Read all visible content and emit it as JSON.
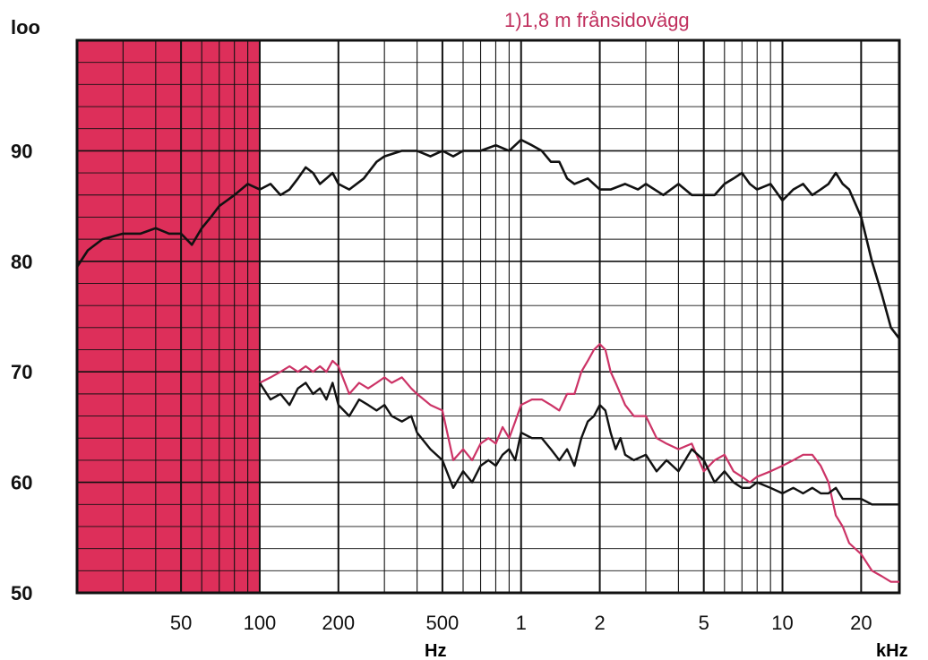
{
  "colors": {
    "shade": "#dd2f5a",
    "grid": "#111111",
    "curve_on_axis": "#111111",
    "curve_off_axis": "#cc3366",
    "note": "#c0305e"
  },
  "chart_data": {
    "type": "line",
    "title": "",
    "note": "1)1,8 m  frånsidovägg",
    "xlabel": "",
    "ylabel": "",
    "xscale": "log",
    "x_unit_hz": "Hz",
    "x_unit_khz": "kHz",
    "xlim": [
      20,
      28000
    ],
    "ylim": [
      50,
      100
    ],
    "grid": true,
    "x_ticks": [
      {
        "value": 50,
        "label": "50"
      },
      {
        "value": 100,
        "label": "100"
      },
      {
        "value": 200,
        "label": "200"
      },
      {
        "value": 500,
        "label": "500"
      },
      {
        "value": 1000,
        "label": "1"
      },
      {
        "value": 2000,
        "label": "2"
      },
      {
        "value": 5000,
        "label": "5"
      },
      {
        "value": 10000,
        "label": "10"
      },
      {
        "value": 20000,
        "label": "20"
      }
    ],
    "y_ticks": [
      {
        "value": 50,
        "label": "50"
      },
      {
        "value": 60,
        "label": "60"
      },
      {
        "value": 70,
        "label": "70"
      },
      {
        "value": 80,
        "label": "80"
      },
      {
        "value": 90,
        "label": "90"
      },
      {
        "value": 100,
        "label": "loo"
      }
    ],
    "shaded_region": {
      "x": [
        20,
        100
      ]
    },
    "series": [
      {
        "key": "on_axis",
        "x": [
          20,
          22,
          25,
          30,
          35,
          40,
          45,
          50,
          55,
          60,
          65,
          70,
          80,
          90,
          100,
          110,
          120,
          130,
          140,
          150,
          160,
          170,
          180,
          190,
          200,
          220,
          250,
          280,
          300,
          350,
          400,
          450,
          500,
          550,
          600,
          700,
          800,
          900,
          1000,
          1100,
          1200,
          1300,
          1400,
          1500,
          1600,
          1800,
          2000,
          2200,
          2500,
          2800,
          3000,
          3500,
          4000,
          4500,
          5000,
          5500,
          6000,
          6500,
          7000,
          7500,
          8000,
          9000,
          10000,
          11000,
          12000,
          13000,
          14000,
          15000,
          16000,
          17000,
          18000,
          20000,
          22000,
          24000,
          26000,
          28000
        ],
        "y": [
          79.5,
          81,
          82,
          82.5,
          82.5,
          83,
          82.5,
          82.5,
          81.5,
          83,
          84,
          85,
          86,
          87,
          86.5,
          87,
          86,
          86.5,
          87.5,
          88.5,
          88,
          87,
          87.5,
          88,
          87,
          86.5,
          87.5,
          89,
          89.5,
          90,
          90,
          89.5,
          90,
          89.5,
          90,
          90,
          90.5,
          90,
          91,
          90.5,
          90,
          89,
          89,
          87.5,
          87,
          87.5,
          86.5,
          86.5,
          87,
          86.5,
          87,
          86,
          87,
          86,
          86,
          86,
          87,
          87.5,
          88,
          87,
          86.5,
          87,
          85.5,
          86.5,
          87,
          86,
          86.5,
          87,
          88,
          87,
          86.5,
          84,
          80,
          77,
          74,
          73
        ]
      },
      {
        "key": "off_axis_red",
        "x": [
          100,
          110,
          120,
          130,
          140,
          150,
          160,
          170,
          180,
          190,
          200,
          220,
          240,
          260,
          280,
          300,
          320,
          350,
          380,
          400,
          450,
          500,
          550,
          600,
          650,
          700,
          750,
          800,
          850,
          900,
          950,
          1000,
          1100,
          1200,
          1300,
          1400,
          1500,
          1600,
          1700,
          1800,
          1900,
          2000,
          2100,
          2200,
          2300,
          2400,
          2500,
          2700,
          3000,
          3300,
          3600,
          4000,
          4500,
          5000,
          5500,
          6000,
          6500,
          7000,
          7500,
          8000,
          9000,
          10000,
          11000,
          12000,
          13000,
          14000,
          15000,
          16000,
          17000,
          18000,
          20000,
          22000,
          24000,
          26000,
          28000
        ],
        "y": [
          69,
          69.5,
          70,
          70.5,
          70,
          70.5,
          70,
          70.5,
          70,
          71,
          70.5,
          68,
          69,
          68.5,
          69,
          69.5,
          69,
          69.5,
          68.5,
          68,
          67,
          66.5,
          62,
          63,
          62,
          63.5,
          64,
          63.5,
          65,
          64,
          65.5,
          67,
          67.5,
          67.5,
          67,
          66.5,
          68,
          68,
          70,
          71,
          72,
          72.5,
          72,
          70,
          69,
          68,
          67,
          66,
          66,
          64,
          63.5,
          63,
          63.5,
          61,
          62,
          62.5,
          61,
          60.5,
          60,
          60.5,
          61,
          61.5,
          62,
          62.5,
          62.5,
          61.5,
          60,
          57,
          56,
          54.5,
          53.5,
          52,
          51.5,
          51,
          51
        ]
      },
      {
        "key": "off_axis_black",
        "x": [
          100,
          110,
          120,
          130,
          140,
          150,
          160,
          170,
          180,
          190,
          200,
          220,
          240,
          260,
          280,
          300,
          320,
          350,
          380,
          400,
          450,
          500,
          550,
          600,
          650,
          700,
          750,
          800,
          850,
          900,
          950,
          1000,
          1100,
          1200,
          1300,
          1400,
          1500,
          1600,
          1700,
          1800,
          1900,
          2000,
          2100,
          2200,
          2300,
          2400,
          2500,
          2700,
          3000,
          3300,
          3600,
          4000,
          4500,
          5000,
          5500,
          6000,
          6500,
          7000,
          7500,
          8000,
          9000,
          10000,
          11000,
          12000,
          13000,
          14000,
          15000,
          16000,
          17000,
          18000,
          20000,
          22000,
          24000,
          26000,
          28000
        ],
        "y": [
          69,
          67.5,
          68,
          67,
          68.5,
          69,
          68,
          68.5,
          67.5,
          69,
          67,
          66,
          67.5,
          67,
          66.5,
          67,
          66,
          65.5,
          66,
          64.5,
          63,
          62,
          59.5,
          61,
          60,
          61.5,
          62,
          61.5,
          62.5,
          63,
          62,
          64.5,
          64,
          64,
          63,
          62,
          63,
          61.5,
          64,
          65.5,
          66,
          67,
          66.5,
          64.5,
          63,
          64,
          62.5,
          62,
          62.5,
          61,
          62,
          61,
          63,
          62,
          60,
          61,
          60,
          59.5,
          59.5,
          60,
          59.5,
          59,
          59.5,
          59,
          59.5,
          59,
          59,
          59.5,
          58.5,
          58.5,
          58.5,
          58,
          58,
          58,
          58
        ]
      }
    ]
  }
}
